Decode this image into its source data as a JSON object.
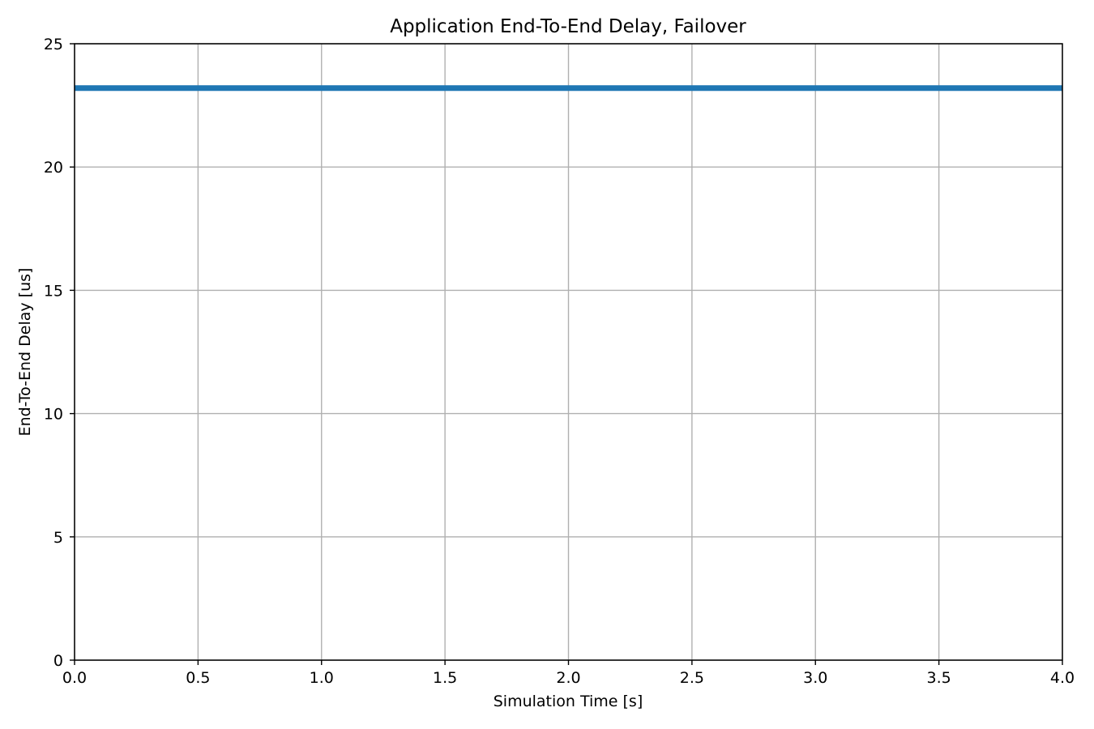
{
  "chart_data": {
    "type": "line",
    "title": "Application End-To-End Delay, Failover",
    "xlabel": "Simulation Time [s]",
    "ylabel": "End-To-End Delay [us]",
    "xlim": [
      0,
      4.0
    ],
    "ylim": [
      0,
      25
    ],
    "x_ticks": [
      "0.0",
      "0.5",
      "1.0",
      "1.5",
      "2.0",
      "2.5",
      "3.0",
      "3.5",
      "4.0"
    ],
    "y_ticks": [
      "0",
      "5",
      "10",
      "15",
      "20",
      "25"
    ],
    "grid": true,
    "series": [
      {
        "color": "#1f77b4",
        "x": [
          0.0,
          4.0
        ],
        "y": [
          23.2,
          23.2
        ]
      }
    ]
  },
  "colors": {
    "grid": "#b0b0b0",
    "axis": "#000000",
    "series": "#1f77b4"
  }
}
